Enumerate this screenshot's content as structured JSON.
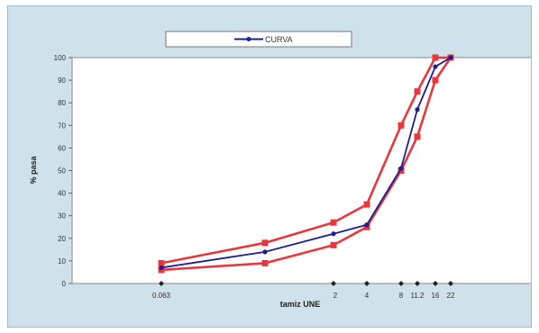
{
  "chart_data": {
    "type": "line",
    "xlabel": "tamiz UNE",
    "ylabel": "% pasa",
    "ylim": [
      0,
      100
    ],
    "y_ticks": [
      "0",
      "10",
      "20",
      "30",
      "40",
      "50",
      "60",
      "70",
      "80",
      "90",
      "100"
    ],
    "x_tick_labels": [
      "0.063",
      "2",
      "4",
      "8",
      "11.2",
      "16",
      "22"
    ],
    "legend": {
      "position": "top",
      "entries": [
        "CURVA"
      ]
    },
    "series": [
      {
        "name": "CURVA",
        "color": "#1f1f8f",
        "x": [
          0.063,
          1,
          2,
          4,
          8,
          11.2,
          16,
          22
        ],
        "y": [
          7,
          14,
          22,
          26,
          51,
          77,
          96,
          100
        ]
      },
      {
        "color": "#e8383d",
        "x": [
          0.063,
          1,
          2,
          4,
          8,
          11.2,
          16,
          22
        ],
        "y": [
          9,
          18,
          27,
          35,
          70,
          85,
          100,
          100
        ]
      },
      {
        "color": "#e8383d",
        "x": [
          0.063,
          1,
          2,
          4,
          8,
          11.2,
          16,
          22
        ],
        "y": [
          6,
          9,
          17,
          25,
          50,
          65,
          90,
          100
        ]
      }
    ]
  }
}
